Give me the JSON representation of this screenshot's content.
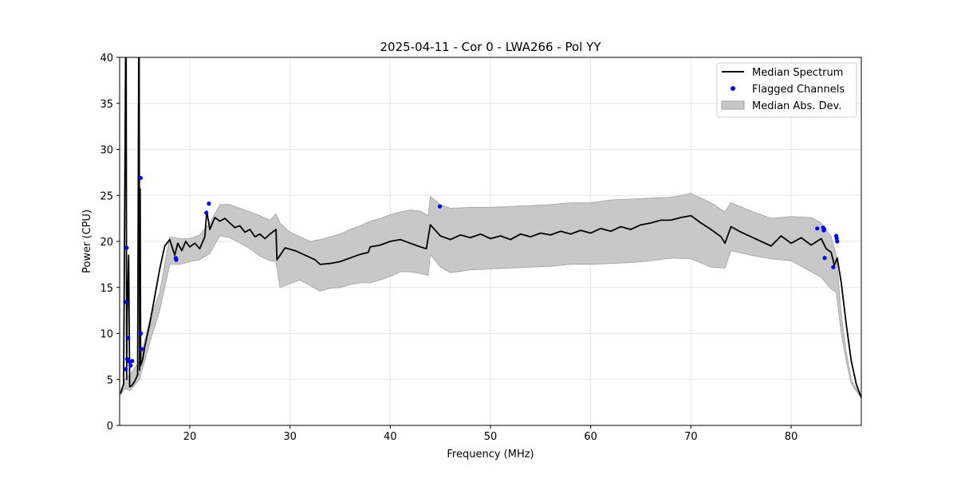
{
  "chart_data": {
    "type": "line",
    "title": "2025-04-11 - Cor 0 - LWA266 - Pol YY",
    "xlabel": "Frequency (MHz)",
    "ylabel": "Power (CPU)",
    "xlim": [
      13,
      87
    ],
    "ylim": [
      0,
      40
    ],
    "xticks": [
      20,
      30,
      40,
      50,
      60,
      70,
      80
    ],
    "yticks": [
      0,
      5,
      10,
      15,
      20,
      25,
      30,
      35,
      40
    ],
    "grid": true,
    "legend_position": "top-right",
    "colors": {
      "median": "#000000",
      "flagged": "#0000ff",
      "mad_fill": "#c8c8c8",
      "mad_edge": "#a0a0a0",
      "grid": "#e6e6e6"
    },
    "legend": [
      {
        "label": "Median Spectrum",
        "kind": "line"
      },
      {
        "label": "Flagged Channels",
        "kind": "marker"
      },
      {
        "label": "Median Abs. Dev.",
        "kind": "patch"
      }
    ],
    "series": [
      {
        "name": "Median Spectrum",
        "x": [
          13.1,
          13.4,
          13.6,
          13.65,
          13.7,
          13.75,
          13.9,
          14.0,
          14.2,
          14.5,
          14.8,
          14.9,
          14.95,
          15.0,
          15.05,
          15.1,
          15.3,
          15.5,
          16.0,
          16.5,
          17.0,
          17.5,
          18.0,
          18.5,
          18.8,
          19.2,
          19.6,
          20.0,
          20.5,
          21.0,
          21.5,
          21.7,
          22.0,
          22.5,
          23.0,
          23.5,
          24.0,
          24.5,
          25.0,
          25.5,
          26.0,
          26.5,
          27.0,
          27.5,
          28.0,
          28.6,
          28.7,
          29.5,
          30.5,
          31.5,
          32.5,
          33.0,
          34.0,
          35.0,
          36.0,
          37.0,
          37.8,
          38.0,
          39.0,
          40.0,
          41.0,
          42.0,
          43.0,
          43.6,
          44.0,
          45.0,
          46.0,
          47.0,
          48.0,
          49.0,
          50.0,
          51.0,
          52.0,
          53.0,
          54.0,
          55.0,
          56.0,
          57.0,
          58.0,
          59.0,
          60.0,
          61.0,
          62.0,
          63.0,
          64.0,
          65.0,
          66.0,
          67.0,
          68.0,
          69.0,
          70.0,
          71.0,
          72.0,
          73.0,
          73.4,
          74.0,
          75.0,
          76.0,
          77.0,
          78.0,
          79.0,
          80.0,
          81.0,
          82.0,
          83.0,
          83.5,
          84.0,
          84.3,
          84.6,
          85.0,
          85.5,
          86.0,
          86.5,
          87.0
        ],
        "y": [
          3.5,
          4.5,
          40,
          40,
          5.0,
          12,
          18.5,
          4.2,
          4.3,
          4.8,
          5.5,
          40,
          40,
          6.0,
          25.7,
          6.5,
          7.2,
          8.5,
          11,
          14,
          17,
          19.5,
          20.2,
          18.5,
          19.8,
          19.0,
          20.0,
          19.4,
          19.8,
          19.2,
          20.5,
          23.3,
          21.3,
          22.6,
          22.2,
          22.5,
          22.0,
          21.5,
          21.7,
          21.0,
          21.3,
          20.5,
          20.8,
          20.3,
          20.8,
          21.3,
          18.0,
          19.3,
          19.0,
          18.5,
          18.0,
          17.5,
          17.6,
          17.8,
          18.2,
          18.6,
          18.8,
          19.4,
          19.6,
          20.0,
          20.2,
          19.8,
          19.4,
          19.2,
          21.8,
          20.6,
          20.2,
          20.7,
          20.4,
          20.8,
          20.3,
          20.6,
          20.2,
          20.8,
          20.5,
          20.9,
          20.7,
          21.1,
          20.8,
          21.2,
          20.9,
          21.4,
          21.1,
          21.6,
          21.3,
          21.8,
          22.0,
          22.3,
          22.3,
          22.6,
          22.8,
          22.0,
          21.3,
          20.5,
          19.8,
          21.6,
          21.0,
          20.5,
          20.0,
          19.5,
          20.6,
          19.8,
          20.4,
          19.6,
          20.3,
          19.2,
          18.8,
          17.4,
          18.2,
          15.5,
          11.0,
          7.0,
          4.5,
          3.0
        ]
      },
      {
        "name": "Median Abs. Dev.",
        "x": [
          13.1,
          13.5,
          14.0,
          15.0,
          16.0,
          17.0,
          18.0,
          19.0,
          20.0,
          21.0,
          22.0,
          23.0,
          24.0,
          25.0,
          26.0,
          27.0,
          28.0,
          28.6,
          29.0,
          30.0,
          31.0,
          32.0,
          33.0,
          34.0,
          35.0,
          36.0,
          37.0,
          38.0,
          39.0,
          40.0,
          41.0,
          42.0,
          43.0,
          43.8,
          44.0,
          45.0,
          46.0,
          48.0,
          50.0,
          52.0,
          54.0,
          56.0,
          58.0,
          60.0,
          62.0,
          64.0,
          66.0,
          68.0,
          70.0,
          72.0,
          73.4,
          74.0,
          76.0,
          78.0,
          80.0,
          82.0,
          83.0,
          84.0,
          84.5,
          85.0,
          85.5,
          86.0,
          87.0
        ],
        "upper": [
          3.8,
          5.0,
          5.5,
          7.0,
          11.5,
          14.5,
          20.5,
          20.3,
          20.3,
          20.7,
          22.0,
          24.0,
          24.0,
          23.6,
          23.2,
          22.8,
          22.3,
          23.0,
          22.0,
          21.0,
          20.5,
          20.0,
          20.2,
          20.5,
          20.8,
          21.3,
          21.7,
          22.2,
          22.5,
          22.9,
          23.2,
          23.4,
          23.3,
          22.8,
          24.9,
          24.0,
          23.6,
          23.7,
          23.7,
          23.8,
          23.9,
          24.0,
          24.2,
          24.2,
          24.5,
          24.6,
          24.7,
          24.8,
          25.2,
          24.2,
          23.2,
          24.2,
          23.3,
          22.5,
          22.7,
          22.6,
          22.0,
          20.5,
          18.5,
          12.0,
          8.0,
          5.0,
          3.0
        ],
        "lower": [
          3.3,
          4.0,
          3.8,
          5.0,
          9.0,
          12.5,
          17.5,
          17.5,
          17.8,
          18.0,
          18.7,
          20.6,
          20.4,
          19.8,
          19.2,
          18.4,
          17.9,
          17.8,
          15.0,
          15.4,
          15.8,
          15.2,
          14.6,
          14.9,
          15.0,
          15.3,
          15.5,
          15.5,
          15.8,
          16.2,
          16.7,
          16.7,
          16.5,
          16.3,
          18.6,
          17.2,
          16.6,
          16.9,
          17.0,
          17.1,
          17.2,
          17.3,
          17.5,
          17.5,
          17.6,
          17.7,
          17.9,
          18.2,
          18.1,
          17.2,
          17.1,
          19.0,
          18.5,
          18.1,
          17.9,
          16.7,
          16.1,
          14.8,
          14.5,
          10.0,
          7.0,
          4.5,
          3.0
        ]
      },
      {
        "name": "Flagged Channels",
        "x": [
          13.55,
          13.6,
          13.7,
          13.75,
          13.85,
          13.9,
          14.0,
          14.1,
          14.25,
          15.1,
          15.12,
          15.2,
          18.6,
          18.65,
          21.65,
          21.9,
          44.95,
          82.6,
          83.2,
          83.25,
          83.3,
          83.35,
          84.2,
          84.5,
          84.55,
          84.6
        ],
        "y": [
          13.4,
          6.1,
          19.3,
          7.2,
          9.5,
          7.0,
          6.9,
          6.5,
          7.0,
          26.9,
          10.0,
          8.3,
          18.2,
          18.0,
          23.1,
          24.1,
          23.8,
          21.4,
          21.5,
          21.2,
          21.3,
          18.2,
          17.2,
          20.6,
          20.3,
          20.0
        ]
      }
    ]
  }
}
